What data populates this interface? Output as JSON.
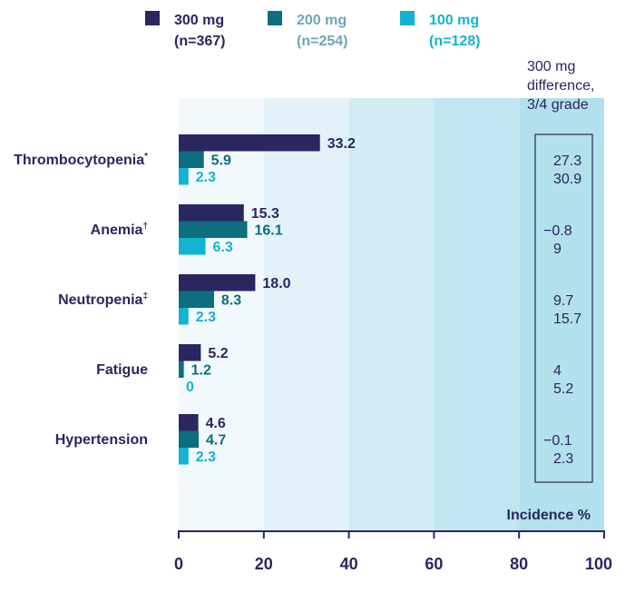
{
  "chart_data": {
    "type": "bar",
    "orientation": "horizontal",
    "categories": [
      {
        "name": "Thrombocytopenia",
        "marker": "*"
      },
      {
        "name": "Anemia",
        "marker": "†"
      },
      {
        "name": "Neutropenia",
        "marker": "‡"
      },
      {
        "name": "Fatigue",
        "marker": ""
      },
      {
        "name": "Hypertension",
        "marker": ""
      }
    ],
    "series": [
      {
        "name": "300 mg",
        "n": "(n=367)",
        "color": "#2a2660",
        "label_color": "#2a2660",
        "values": [
          33.2,
          15.3,
          18.0,
          5.2,
          4.6
        ],
        "value_labels": [
          "33.2",
          "15.3",
          "18.0",
          "5.2",
          "4.6"
        ]
      },
      {
        "name": "200 mg",
        "n": "(n=254)",
        "color": "#0c6e7e",
        "label_color": "#0c6e7e",
        "legend_text_color": "#6aa7b3",
        "values": [
          5.9,
          16.1,
          8.3,
          1.2,
          4.7
        ],
        "value_labels": [
          "5.9",
          "16.1",
          "8.3",
          "1.2",
          "4.7"
        ]
      },
      {
        "name": "100 mg",
        "n": "(n=128)",
        "color": "#12b3d1",
        "label_color": "#12b3d1",
        "values": [
          2.3,
          6.3,
          2.3,
          0,
          2.3
        ],
        "value_labels": [
          "2.3",
          "6.3",
          "2.3",
          "0",
          "2.3"
        ]
      }
    ],
    "difference_column": {
      "title_lines": [
        "300 mg",
        "difference,",
        "3/4 grade"
      ],
      "rows": [
        [
          "27.3",
          "30.9"
        ],
        [
          "−0.8",
          "9"
        ],
        [
          "9.7",
          "15.7"
        ],
        [
          "4",
          "5.2"
        ],
        [
          "−0.1",
          "2.3"
        ]
      ]
    },
    "xlim": [
      0,
      100
    ],
    "xticks": [
      0,
      20,
      40,
      60,
      80,
      100
    ],
    "xlabel": "Incidence %",
    "background_bands": [
      "#f2f9fc",
      "#e2f2f8",
      "#d0ecf4",
      "#c0e6f0",
      "#b2e0ec"
    ],
    "text_color": "#2a2660"
  }
}
